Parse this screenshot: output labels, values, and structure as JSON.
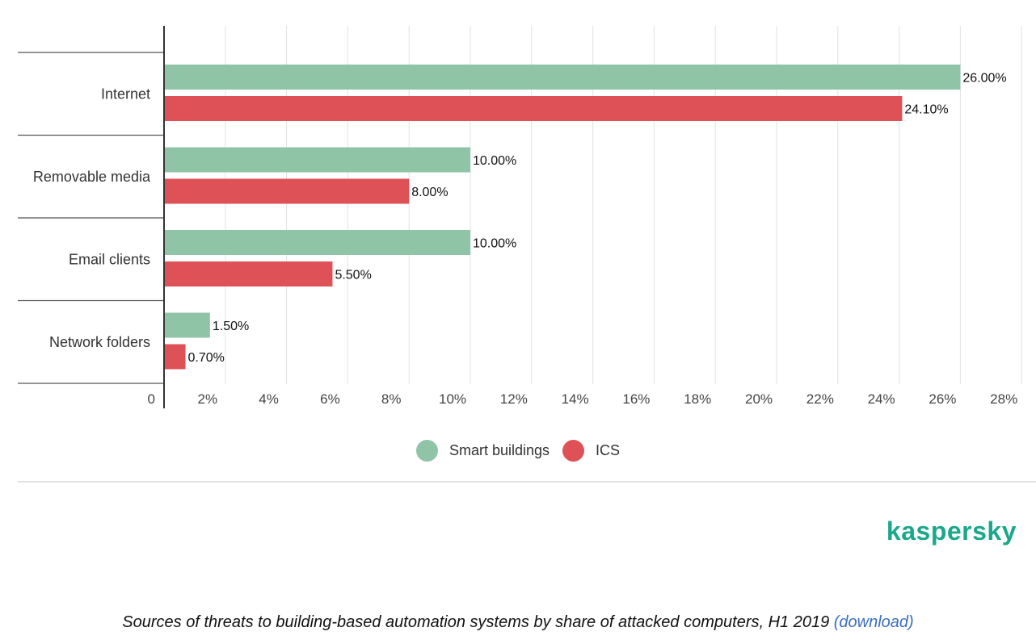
{
  "colors": {
    "smart_buildings": "#8fc4a7",
    "ics": "#dd5157",
    "brand": "#1aa88b",
    "link": "#3a6fbf"
  },
  "chart_data": {
    "type": "bar",
    "orientation": "horizontal",
    "categories": [
      "Internet",
      "Removable media",
      "Email clients",
      "Network folders"
    ],
    "series": [
      {
        "name": "Smart buildings",
        "values": [
          26.0,
          10.0,
          10.0,
          1.5
        ],
        "labels": [
          "26.00%",
          "10.00%",
          "10.00%",
          "1.50%"
        ]
      },
      {
        "name": "ICS",
        "values": [
          24.1,
          8.0,
          5.5,
          0.7
        ],
        "labels": [
          "24.10%",
          "8.00%",
          "5.50%",
          "0.70%"
        ]
      }
    ],
    "xlim": [
      0,
      28
    ],
    "xticks": [
      0,
      2,
      4,
      6,
      8,
      10,
      12,
      14,
      16,
      18,
      20,
      22,
      24,
      26,
      28
    ],
    "xtick_labels": [
      "0",
      "2%",
      "4%",
      "6%",
      "8%",
      "10%",
      "12%",
      "14%",
      "16%",
      "18%",
      "20%",
      "22%",
      "24%",
      "26%",
      "28%"
    ],
    "grid": true,
    "legend_position": "bottom-center"
  },
  "legend": {
    "smart_buildings_label": "Smart buildings",
    "ics_label": "ICS"
  },
  "brand": "kaspersky",
  "caption": {
    "text": "Sources of threats to building-based automation systems by share of attacked computers, H1 2019",
    "link_text": "(download)"
  }
}
